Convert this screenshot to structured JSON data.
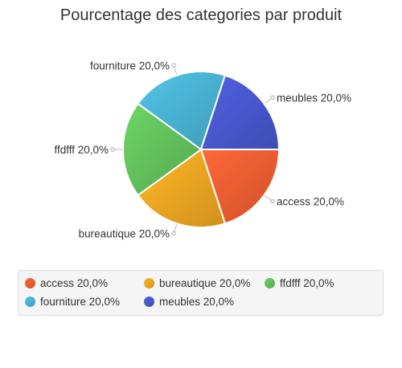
{
  "chart_data": {
    "type": "pie",
    "title": "Pourcentage des categories par produit",
    "slices": [
      {
        "label": "access",
        "value": 20.0,
        "display": "access 20,0%",
        "color": "#e2582f"
      },
      {
        "label": "bureautique",
        "value": 20.0,
        "display": "bureautique 20,0%",
        "color": "#e39c20"
      },
      {
        "label": "ffdfff",
        "value": 20.0,
        "display": "ffdfff 20,0%",
        "color": "#5cb557"
      },
      {
        "label": "fourniture",
        "value": 20.0,
        "display": "fourniture 20,0%",
        "color": "#45a8c6"
      },
      {
        "label": "meubles",
        "value": 20.0,
        "display": "meubles 20,0%",
        "color": "#4553c2"
      }
    ],
    "legend_placement": "bottom"
  }
}
